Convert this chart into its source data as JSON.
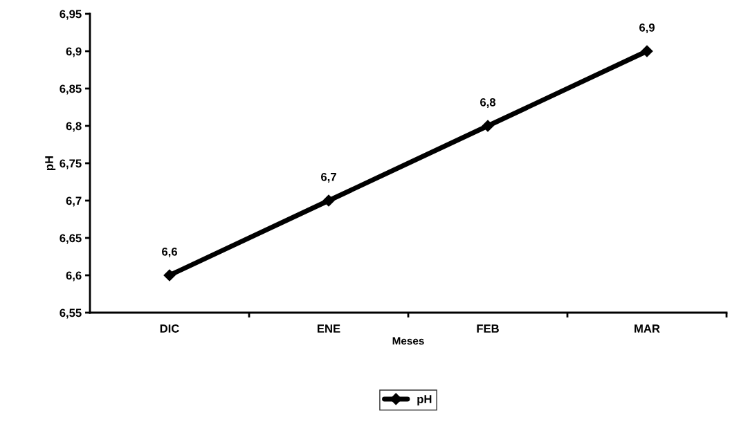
{
  "chart_data": {
    "type": "line",
    "xlabel": "Meses",
    "ylabel": "pH",
    "categories": [
      "DIC",
      "ENE",
      "FEB",
      "MAR"
    ],
    "series": [
      {
        "name": "pH",
        "color": "#000000",
        "values": [
          6.6,
          6.7,
          6.8,
          6.9
        ],
        "value_labels": [
          "6,6",
          "6,7",
          "6,8",
          "6,9"
        ]
      }
    ],
    "ylim": [
      6.55,
      6.95
    ],
    "yticks": [
      {
        "value": 6.55,
        "label": "6,55"
      },
      {
        "value": 6.6,
        "label": "6,6"
      },
      {
        "value": 6.65,
        "label": "6,65"
      },
      {
        "value": 6.7,
        "label": "6,7"
      },
      {
        "value": 6.75,
        "label": "6,75"
      },
      {
        "value": 6.8,
        "label": "6,8"
      },
      {
        "value": 6.85,
        "label": "6,85"
      },
      {
        "value": 6.9,
        "label": "6,9"
      },
      {
        "value": 6.95,
        "label": "6,95"
      }
    ],
    "grid": false,
    "legend": "bottom",
    "marker": "diamond",
    "line_style": "solid"
  }
}
